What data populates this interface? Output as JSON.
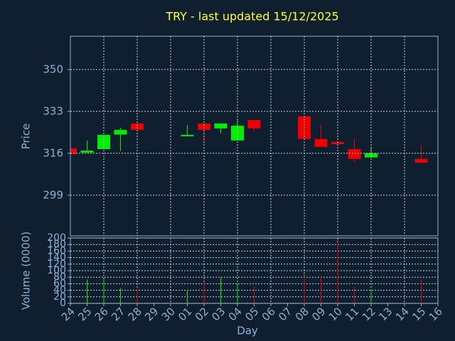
{
  "chart_data": [
    {
      "type": "candlestick",
      "title": "TRY - last updated 15/12/2025",
      "ylabel": "Price",
      "categories": [
        "24",
        "25",
        "26",
        "27",
        "28",
        "29",
        "30",
        "01",
        "02",
        "03",
        "04",
        "05",
        "06",
        "07",
        "08",
        "09",
        "10",
        "11",
        "12",
        "13",
        "14",
        "15",
        "16"
      ],
      "open": [
        318.0,
        316.3,
        317.7,
        323.6,
        328.1,
        null,
        null,
        322.9,
        328.1,
        326.1,
        321.2,
        329.5,
        null,
        null,
        331.0,
        321.8,
        320.6,
        317.7,
        314.3,
        null,
        null,
        313.7,
        null
      ],
      "high": [
        318.0,
        321.2,
        323.5,
        326.4,
        328.1,
        null,
        null,
        327.5,
        328.1,
        328.1,
        329.8,
        329.5,
        null,
        null,
        331.0,
        327.5,
        320.6,
        322.0,
        318.6,
        null,
        null,
        319.2,
        null
      ],
      "low": [
        315.7,
        316.3,
        317.7,
        316.9,
        325.5,
        null,
        null,
        322.9,
        320.0,
        324.1,
        321.2,
        324.9,
        null,
        null,
        321.8,
        318.6,
        319.7,
        312.5,
        314.3,
        null,
        null,
        312.2,
        null
      ],
      "close": [
        315.7,
        317.1,
        323.5,
        325.5,
        325.5,
        null,
        null,
        323.5,
        325.5,
        328.1,
        327.2,
        326.1,
        null,
        null,
        321.8,
        318.6,
        319.7,
        313.7,
        316.0,
        null,
        null,
        312.2,
        null
      ],
      "ylim": [
        282.5,
        363.5
      ],
      "yticks": [
        299,
        316,
        333,
        350
      ],
      "grid": true,
      "up_color": "#00ee00",
      "down_color": "#ee0000"
    },
    {
      "type": "bar",
      "ylabel": "Volume (0000)",
      "xlabel": "Day",
      "values": [
        null,
        73,
        73,
        47,
        47,
        null,
        null,
        41,
        62,
        79,
        58,
        51,
        null,
        null,
        84,
        84,
        186,
        51,
        43,
        null,
        null,
        73,
        null
      ],
      "ylim": [
        0,
        200
      ],
      "yticks": [
        0,
        20,
        40,
        60,
        80,
        100,
        120,
        140,
        160,
        180,
        200
      ],
      "grid": true
    }
  ]
}
